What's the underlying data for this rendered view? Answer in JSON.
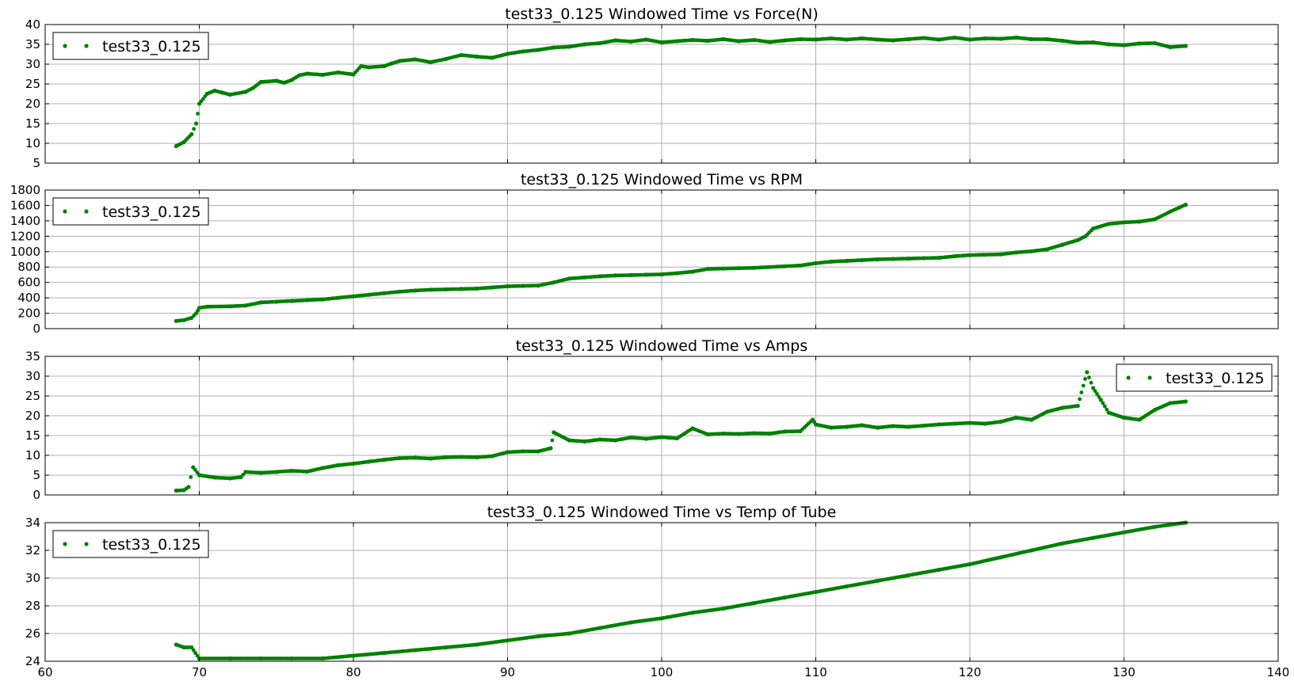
{
  "chart_data": [
    {
      "type": "scatter",
      "title": "test33_0.125 Windowed Time vs Force(N)",
      "xlabel": "",
      "ylabel": "",
      "xlim": [
        60,
        140
      ],
      "ylim": [
        5,
        40
      ],
      "xticks": [
        60,
        70,
        80,
        90,
        100,
        110,
        120,
        130,
        140
      ],
      "yticks": [
        5,
        10,
        15,
        20,
        25,
        30,
        35,
        40
      ],
      "grid": true,
      "legend_position": "top-left",
      "series": [
        {
          "name": "test33_0.125",
          "color": "#008000",
          "points": [
            [
              68.5,
              9.3
            ],
            [
              69,
              10.3
            ],
            [
              69.5,
              12.3
            ],
            [
              69.8,
              15
            ],
            [
              70,
              20
            ],
            [
              70.5,
              22.5
            ],
            [
              71,
              23.3
            ],
            [
              71.5,
              22.8
            ],
            [
              72,
              22.3
            ],
            [
              73,
              23
            ],
            [
              73.5,
              24
            ],
            [
              74,
              25.5
            ],
            [
              75,
              25.8
            ],
            [
              75.5,
              25.3
            ],
            [
              76,
              26
            ],
            [
              76.5,
              27.2
            ],
            [
              77,
              27.6
            ],
            [
              78,
              27.3
            ],
            [
              79,
              27.9
            ],
            [
              80,
              27.4
            ],
            [
              80.5,
              29.5
            ],
            [
              81,
              29.2
            ],
            [
              82,
              29.5
            ],
            [
              82.5,
              30.2
            ],
            [
              83,
              30.8
            ],
            [
              84,
              31.2
            ],
            [
              85,
              30.5
            ],
            [
              86,
              31.3
            ],
            [
              87,
              32.3
            ],
            [
              88,
              31.9
            ],
            [
              89,
              31.6
            ],
            [
              90,
              32.6
            ],
            [
              91,
              33.2
            ],
            [
              92,
              33.6
            ],
            [
              93,
              34.2
            ],
            [
              94,
              34.4
            ],
            [
              95,
              35
            ],
            [
              96,
              35.3
            ],
            [
              97,
              36
            ],
            [
              98,
              35.7
            ],
            [
              99,
              36.2
            ],
            [
              100,
              35.5
            ],
            [
              101,
              35.8
            ],
            [
              102,
              36.1
            ],
            [
              103,
              35.9
            ],
            [
              104,
              36.3
            ],
            [
              105,
              35.8
            ],
            [
              106,
              36.1
            ],
            [
              107,
              35.6
            ],
            [
              108,
              36
            ],
            [
              109,
              36.3
            ],
            [
              110,
              36.2
            ],
            [
              111,
              36.5
            ],
            [
              112,
              36.2
            ],
            [
              113,
              36.5
            ],
            [
              114,
              36.2
            ],
            [
              115,
              36
            ],
            [
              116,
              36.3
            ],
            [
              117,
              36.6
            ],
            [
              118,
              36.2
            ],
            [
              119,
              36.7
            ],
            [
              120,
              36.2
            ],
            [
              121,
              36.5
            ],
            [
              122,
              36.4
            ],
            [
              123,
              36.7
            ],
            [
              124,
              36.3
            ],
            [
              125,
              36.3
            ],
            [
              126,
              35.9
            ],
            [
              127,
              35.4
            ],
            [
              128,
              35.5
            ],
            [
              129,
              35
            ],
            [
              130,
              34.8
            ],
            [
              131,
              35.2
            ],
            [
              132,
              35.3
            ],
            [
              133,
              34.3
            ],
            [
              134,
              34.6
            ]
          ]
        }
      ]
    },
    {
      "type": "scatter",
      "title": "test33_0.125 Windowed Time vs RPM",
      "xlabel": "",
      "ylabel": "",
      "xlim": [
        60,
        140
      ],
      "ylim": [
        0,
        1800
      ],
      "xticks": [
        60,
        70,
        80,
        90,
        100,
        110,
        120,
        130,
        140
      ],
      "yticks": [
        0,
        200,
        400,
        600,
        800,
        1000,
        1200,
        1400,
        1600,
        1800
      ],
      "grid": true,
      "legend_position": "top-left",
      "series": [
        {
          "name": "test33_0.125",
          "color": "#008000",
          "points": [
            [
              68.5,
              100
            ],
            [
              69,
              110
            ],
            [
              69.5,
              140
            ],
            [
              69.8,
              200
            ],
            [
              70,
              270
            ],
            [
              70.5,
              285
            ],
            [
              72,
              290
            ],
            [
              73,
              300
            ],
            [
              74,
              340
            ],
            [
              75,
              350
            ],
            [
              76,
              360
            ],
            [
              77,
              370
            ],
            [
              78,
              380
            ],
            [
              79,
              400
            ],
            [
              80,
              420
            ],
            [
              81,
              440
            ],
            [
              82,
              460
            ],
            [
              83,
              480
            ],
            [
              84,
              495
            ],
            [
              85,
              505
            ],
            [
              86,
              510
            ],
            [
              87,
              515
            ],
            [
              88,
              520
            ],
            [
              89,
              535
            ],
            [
              90,
              550
            ],
            [
              91,
              555
            ],
            [
              92,
              560
            ],
            [
              93,
              600
            ],
            [
              94,
              650
            ],
            [
              95,
              665
            ],
            [
              96,
              680
            ],
            [
              97,
              690
            ],
            [
              98,
              695
            ],
            [
              99,
              700
            ],
            [
              100,
              705
            ],
            [
              101,
              720
            ],
            [
              102,
              740
            ],
            [
              103,
              775
            ],
            [
              104,
              780
            ],
            [
              105,
              785
            ],
            [
              106,
              790
            ],
            [
              107,
              800
            ],
            [
              108,
              810
            ],
            [
              109,
              820
            ],
            [
              110,
              850
            ],
            [
              111,
              870
            ],
            [
              112,
              880
            ],
            [
              113,
              890
            ],
            [
              114,
              900
            ],
            [
              115,
              905
            ],
            [
              116,
              910
            ],
            [
              117,
              915
            ],
            [
              118,
              920
            ],
            [
              119,
              940
            ],
            [
              120,
              955
            ],
            [
              121,
              960
            ],
            [
              122,
              965
            ],
            [
              123,
              990
            ],
            [
              124,
              1005
            ],
            [
              125,
              1030
            ],
            [
              126,
              1090
            ],
            [
              127,
              1150
            ],
            [
              127.5,
              1200
            ],
            [
              128,
              1300
            ],
            [
              129,
              1360
            ],
            [
              130,
              1380
            ],
            [
              131,
              1390
            ],
            [
              132,
              1420
            ],
            [
              133,
              1520
            ],
            [
              134,
              1610
            ]
          ]
        }
      ]
    },
    {
      "type": "scatter",
      "title": "test33_0.125 Windowed Time vs Amps",
      "xlabel": "",
      "ylabel": "",
      "xlim": [
        60,
        140
      ],
      "ylim": [
        0,
        35
      ],
      "xticks": [
        60,
        70,
        80,
        90,
        100,
        110,
        120,
        130,
        140
      ],
      "yticks": [
        0,
        5,
        10,
        15,
        20,
        25,
        30,
        35
      ],
      "grid": true,
      "legend_position": "top-right",
      "series": [
        {
          "name": "test33_0.125",
          "color": "#008000",
          "points": [
            [
              68.5,
              1.1
            ],
            [
              69,
              1.2
            ],
            [
              69.3,
              2
            ],
            [
              69.6,
              7
            ],
            [
              70,
              5
            ],
            [
              71,
              4.4
            ],
            [
              72,
              4.2
            ],
            [
              72.7,
              4.5
            ],
            [
              73,
              5.8
            ],
            [
              74,
              5.6
            ],
            [
              75,
              5.8
            ],
            [
              76,
              6.1
            ],
            [
              77,
              5.9
            ],
            [
              78,
              6.8
            ],
            [
              79,
              7.5
            ],
            [
              80,
              7.9
            ],
            [
              81,
              8.4
            ],
            [
              82,
              8.9
            ],
            [
              83,
              9.3
            ],
            [
              84,
              9.4
            ],
            [
              85,
              9.2
            ],
            [
              86,
              9.5
            ],
            [
              87,
              9.6
            ],
            [
              88,
              9.5
            ],
            [
              89,
              9.8
            ],
            [
              90,
              10.8
            ],
            [
              91,
              11
            ],
            [
              92,
              11
            ],
            [
              92.8,
              11.8
            ],
            [
              93,
              15.8
            ],
            [
              94,
              13.8
            ],
            [
              95,
              13.5
            ],
            [
              96,
              14
            ],
            [
              97,
              13.8
            ],
            [
              98,
              14.5
            ],
            [
              99,
              14.2
            ],
            [
              100,
              14.6
            ],
            [
              101,
              14.3
            ],
            [
              102,
              16.8
            ],
            [
              103,
              15.3
            ],
            [
              104,
              15.5
            ],
            [
              105,
              15.4
            ],
            [
              106,
              15.6
            ],
            [
              107,
              15.5
            ],
            [
              108,
              16
            ],
            [
              109,
              16.1
            ],
            [
              109.8,
              19
            ],
            [
              110,
              17.8
            ],
            [
              111,
              17
            ],
            [
              112,
              17.2
            ],
            [
              113,
              17.6
            ],
            [
              114,
              17
            ],
            [
              115,
              17.4
            ],
            [
              116,
              17.2
            ],
            [
              117,
              17.5
            ],
            [
              118,
              17.8
            ],
            [
              119,
              18
            ],
            [
              120,
              18.2
            ],
            [
              121,
              18
            ],
            [
              122,
              18.5
            ],
            [
              123,
              19.5
            ],
            [
              124,
              19
            ],
            [
              125,
              21
            ],
            [
              126,
              22
            ],
            [
              127,
              22.5
            ],
            [
              127.6,
              31
            ],
            [
              128,
              27
            ],
            [
              128.5,
              24
            ],
            [
              129,
              20.8
            ],
            [
              130,
              19.5
            ],
            [
              131,
              19
            ],
            [
              132,
              21.5
            ],
            [
              133,
              23.2
            ],
            [
              134,
              23.6
            ]
          ]
        }
      ]
    },
    {
      "type": "scatter",
      "title": "test33_0.125 Windowed Time vs Temp of Tube",
      "xlabel": "",
      "ylabel": "",
      "xlim": [
        60,
        140
      ],
      "ylim": [
        24,
        34
      ],
      "xticks": [
        60,
        70,
        80,
        90,
        100,
        110,
        120,
        130,
        140
      ],
      "yticks": [
        24,
        26,
        28,
        30,
        32,
        34
      ],
      "grid": true,
      "legend_position": "top-left",
      "series": [
        {
          "name": "test33_0.125",
          "color": "#008000",
          "points": [
            [
              68.5,
              25.2
            ],
            [
              69,
              25.0
            ],
            [
              69.5,
              25.0
            ],
            [
              70,
              24.2
            ],
            [
              72,
              24.2
            ],
            [
              74,
              24.2
            ],
            [
              76,
              24.2
            ],
            [
              78,
              24.2
            ],
            [
              80,
              24.4
            ],
            [
              82,
              24.6
            ],
            [
              84,
              24.8
            ],
            [
              86,
              25
            ],
            [
              88,
              25.2
            ],
            [
              90,
              25.5
            ],
            [
              92,
              25.8
            ],
            [
              94,
              26
            ],
            [
              96,
              26.4
            ],
            [
              98,
              26.8
            ],
            [
              100,
              27.1
            ],
            [
              102,
              27.5
            ],
            [
              104,
              27.8
            ],
            [
              106,
              28.2
            ],
            [
              108,
              28.6
            ],
            [
              110,
              29
            ],
            [
              112,
              29.4
            ],
            [
              114,
              29.8
            ],
            [
              116,
              30.2
            ],
            [
              118,
              30.6
            ],
            [
              120,
              31
            ],
            [
              122,
              31.5
            ],
            [
              124,
              32
            ],
            [
              126,
              32.5
            ],
            [
              128,
              32.9
            ],
            [
              130,
              33.3
            ],
            [
              132,
              33.7
            ],
            [
              134,
              34
            ]
          ]
        }
      ]
    }
  ]
}
